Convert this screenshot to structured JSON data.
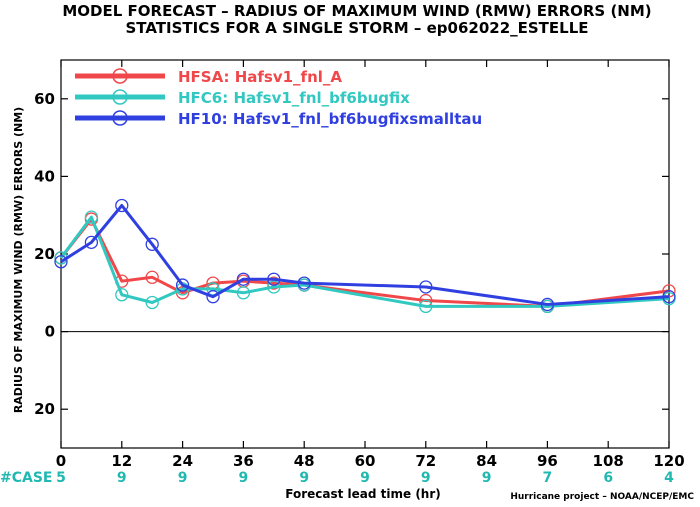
{
  "title_line1": "MODEL FORECAST – RADIUS OF MAXIMUM WIND (RMW) ERRORS (NM)",
  "title_line2": "STATISTICS FOR A SINGLE STORM – ep062022_ESTELLE",
  "credit": "Hurricane project – NOAA/NCEP/EMC",
  "case_label": "#CASE",
  "case_color": "#20b8b0",
  "case_counts": [
    {
      "x": 0,
      "n": "5"
    },
    {
      "x": 12,
      "n": "9"
    },
    {
      "x": 24,
      "n": "9"
    },
    {
      "x": 36,
      "n": "9"
    },
    {
      "x": 48,
      "n": "9"
    },
    {
      "x": 60,
      "n": "9"
    },
    {
      "x": 72,
      "n": "9"
    },
    {
      "x": 84,
      "n": "9"
    },
    {
      "x": 96,
      "n": "7"
    },
    {
      "x": 108,
      "n": "6"
    },
    {
      "x": 120,
      "n": "4"
    }
  ],
  "chart_data": {
    "type": "line",
    "title": "MODEL FORECAST – RADIUS OF MAXIMUM WIND (RMW) ERRORS (NM) / STATISTICS FOR A SINGLE STORM – ep062022_ESTELLE",
    "xlabel": "Forecast lead time (hr)",
    "ylabel": "RADIUS OF MAXIMUM WIND (RMW) ERRORS (NM)",
    "xlim": [
      0,
      120
    ],
    "ylim": [
      -30,
      70
    ],
    "xticks": [
      0,
      12,
      24,
      36,
      48,
      60,
      72,
      84,
      96,
      108,
      120
    ],
    "yticks": [
      -20,
      0,
      20,
      40,
      60
    ],
    "ytick_labels": [
      "20",
      "0",
      "20",
      "40",
      "60"
    ],
    "zero_line": true,
    "grid": false,
    "legend": "top-left",
    "series": [
      {
        "name": "HFSA: Hafsv1_fnl_A",
        "color": "#f0484a",
        "x": [
          0,
          6,
          12,
          18,
          24,
          30,
          36,
          42,
          48,
          72,
          96,
          120
        ],
        "y": [
          19,
          29,
          13,
          14,
          10,
          12.5,
          13,
          12.5,
          12,
          8,
          6.5,
          10.5
        ]
      },
      {
        "name": "HFC6: Hafsv1_fnl_bf6bugfix",
        "color": "#30c8c0",
        "x": [
          0,
          6,
          12,
          18,
          24,
          30,
          36,
          42,
          48,
          72,
          96,
          120
        ],
        "y": [
          19,
          29.5,
          9.5,
          7.5,
          11,
          11,
          10,
          11.5,
          12,
          6.5,
          6.5,
          8.5
        ]
      },
      {
        "name": "HF10: Hafsv1_fnl_bf6bugfixsmalltau",
        "color": "#3040e0",
        "x": [
          0,
          6,
          12,
          18,
          24,
          30,
          36,
          42,
          48,
          72,
          96,
          120
        ],
        "y": [
          18,
          23,
          32.5,
          22.5,
          12,
          9,
          13.5,
          13.5,
          12.5,
          11.5,
          7,
          9
        ]
      }
    ]
  }
}
